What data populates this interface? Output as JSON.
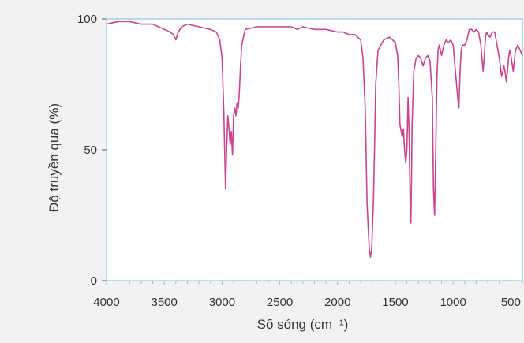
{
  "chart_data": {
    "type": "line",
    "title": "",
    "xlabel": "Số sóng (cm⁻¹)",
    "ylabel": "Độ truyền qua (%)",
    "xlim": [
      4000,
      400
    ],
    "ylim": [
      0,
      100
    ],
    "x_reversed": true,
    "x_ticks": [
      4000,
      3500,
      3000,
      2500,
      2000,
      1500,
      1000,
      500
    ],
    "y_ticks": [
      0,
      50,
      100
    ],
    "grid": false,
    "legend": "none",
    "colors": {
      "line": "#c9438e",
      "frame": "#8fc6dc",
      "axis": "#555555",
      "plot_bg": "#ffffff",
      "page_bg": "#f2f2f2"
    },
    "series": [
      {
        "x": [
          4000,
          3900,
          3800,
          3700,
          3600,
          3500,
          3450,
          3420,
          3400,
          3380,
          3350,
          3300,
          3200,
          3100,
          3050,
          3020,
          3000,
          2985,
          2970,
          2960,
          2950,
          2940,
          2930,
          2920,
          2910,
          2900,
          2890,
          2880,
          2870,
          2860,
          2850,
          2840,
          2830,
          2800,
          2700,
          2600,
          2500,
          2400,
          2350,
          2300,
          2200,
          2100,
          2000,
          1950,
          1900,
          1850,
          1800,
          1780,
          1760,
          1745,
          1735,
          1725,
          1715,
          1705,
          1700,
          1690,
          1680,
          1670,
          1650,
          1600,
          1550,
          1500,
          1480,
          1470,
          1460,
          1450,
          1440,
          1430,
          1420,
          1410,
          1400,
          1390,
          1380,
          1370,
          1365,
          1360,
          1355,
          1340,
          1320,
          1300,
          1280,
          1260,
          1240,
          1220,
          1200,
          1180,
          1170,
          1160,
          1150,
          1140,
          1130,
          1120,
          1110,
          1100,
          1080,
          1060,
          1040,
          1020,
          1000,
          980,
          960,
          950,
          940,
          930,
          920,
          900,
          880,
          860,
          840,
          820,
          800,
          780,
          760,
          740,
          730,
          720,
          710,
          700,
          680,
          660,
          640,
          620,
          600,
          580,
          560,
          550,
          540,
          530,
          520,
          510,
          500,
          480,
          460,
          440,
          420,
          400
        ],
        "y": [
          98,
          99,
          99,
          98,
          98,
          96,
          95,
          94,
          92,
          95,
          97,
          98,
          97,
          96,
          95,
          92,
          85,
          65,
          35,
          50,
          63,
          58,
          52,
          57,
          48,
          63,
          66,
          63,
          68,
          66,
          72,
          82,
          90,
          96,
          97,
          97,
          97,
          97,
          96,
          97,
          96,
          96,
          95,
          95,
          94,
          94,
          92,
          85,
          65,
          30,
          20,
          12,
          9,
          12,
          18,
          30,
          50,
          75,
          88,
          92,
          93,
          91,
          86,
          75,
          60,
          57,
          55,
          58,
          50,
          45,
          50,
          70,
          55,
          25,
          22,
          40,
          60,
          80,
          85,
          86,
          85,
          82,
          85,
          86,
          84,
          70,
          35,
          25,
          50,
          78,
          88,
          90,
          88,
          86,
          90,
          92,
          91,
          92,
          90,
          80,
          70,
          66,
          80,
          88,
          90,
          90,
          92,
          96,
          96,
          95,
          96,
          95,
          90,
          80,
          86,
          93,
          95,
          94,
          93,
          95,
          95,
          90,
          85,
          78,
          82,
          80,
          76,
          80,
          85,
          88,
          86,
          80,
          88,
          90,
          88,
          86
        ]
      }
    ]
  }
}
